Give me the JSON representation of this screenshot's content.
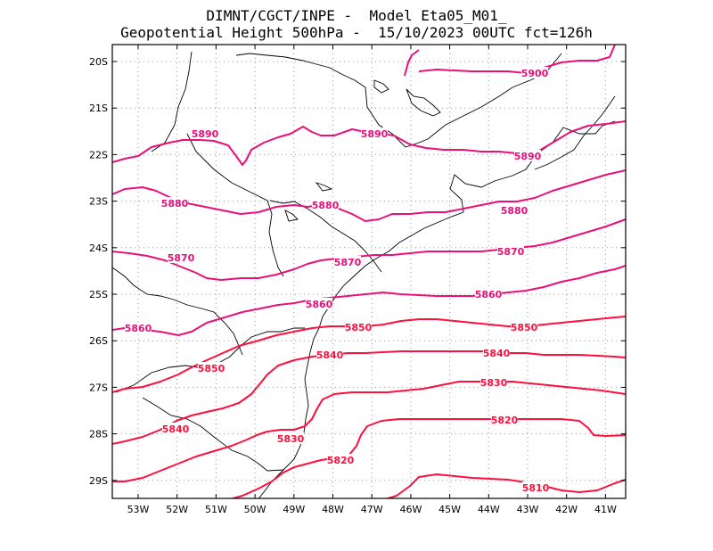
{
  "title": {
    "line1": "DIMNT/CGCT/INPE -  Model Eta05_M01_",
    "line2": "Geopotential Height 500hPa -  15/10/2023 00UTC fct=126h"
  },
  "colors": {
    "pink": "#e8107a",
    "red": "#ff0f3c",
    "coast": "#000000",
    "grid": "#9a9a9a"
  },
  "map": {
    "lat_labels": [
      "20S",
      "21S",
      "22S",
      "23S",
      "24S",
      "25S",
      "26S",
      "27S",
      "28S",
      "29S"
    ],
    "lon_labels": [
      "53W",
      "52W",
      "51W",
      "50W",
      "49W",
      "48W",
      "47W",
      "46W",
      "45W",
      "44W",
      "43W",
      "42W",
      "41W"
    ]
  },
  "contour_labels": [
    {
      "text": "5900",
      "color": "pink"
    },
    {
      "text": "5890",
      "color": "pink"
    },
    {
      "text": "5890",
      "color": "pink"
    },
    {
      "text": "5890",
      "color": "pink"
    },
    {
      "text": "5880",
      "color": "pink"
    },
    {
      "text": "5880",
      "color": "pink"
    },
    {
      "text": "5880",
      "color": "pink"
    },
    {
      "text": "5870",
      "color": "pink"
    },
    {
      "text": "5870",
      "color": "pink"
    },
    {
      "text": "5870",
      "color": "pink"
    },
    {
      "text": "5860",
      "color": "pink"
    },
    {
      "text": "5860",
      "color": "pink"
    },
    {
      "text": "5860",
      "color": "pink"
    },
    {
      "text": "5850",
      "color": "red"
    },
    {
      "text": "5850",
      "color": "red"
    },
    {
      "text": "5850",
      "color": "red"
    },
    {
      "text": "5840",
      "color": "red"
    },
    {
      "text": "5840",
      "color": "red"
    },
    {
      "text": "5840",
      "color": "red"
    },
    {
      "text": "5830",
      "color": "red"
    },
    {
      "text": "5830",
      "color": "red"
    },
    {
      "text": "5820",
      "color": "red"
    },
    {
      "text": "5820",
      "color": "red"
    },
    {
      "text": "5810",
      "color": "red"
    }
  ]
}
